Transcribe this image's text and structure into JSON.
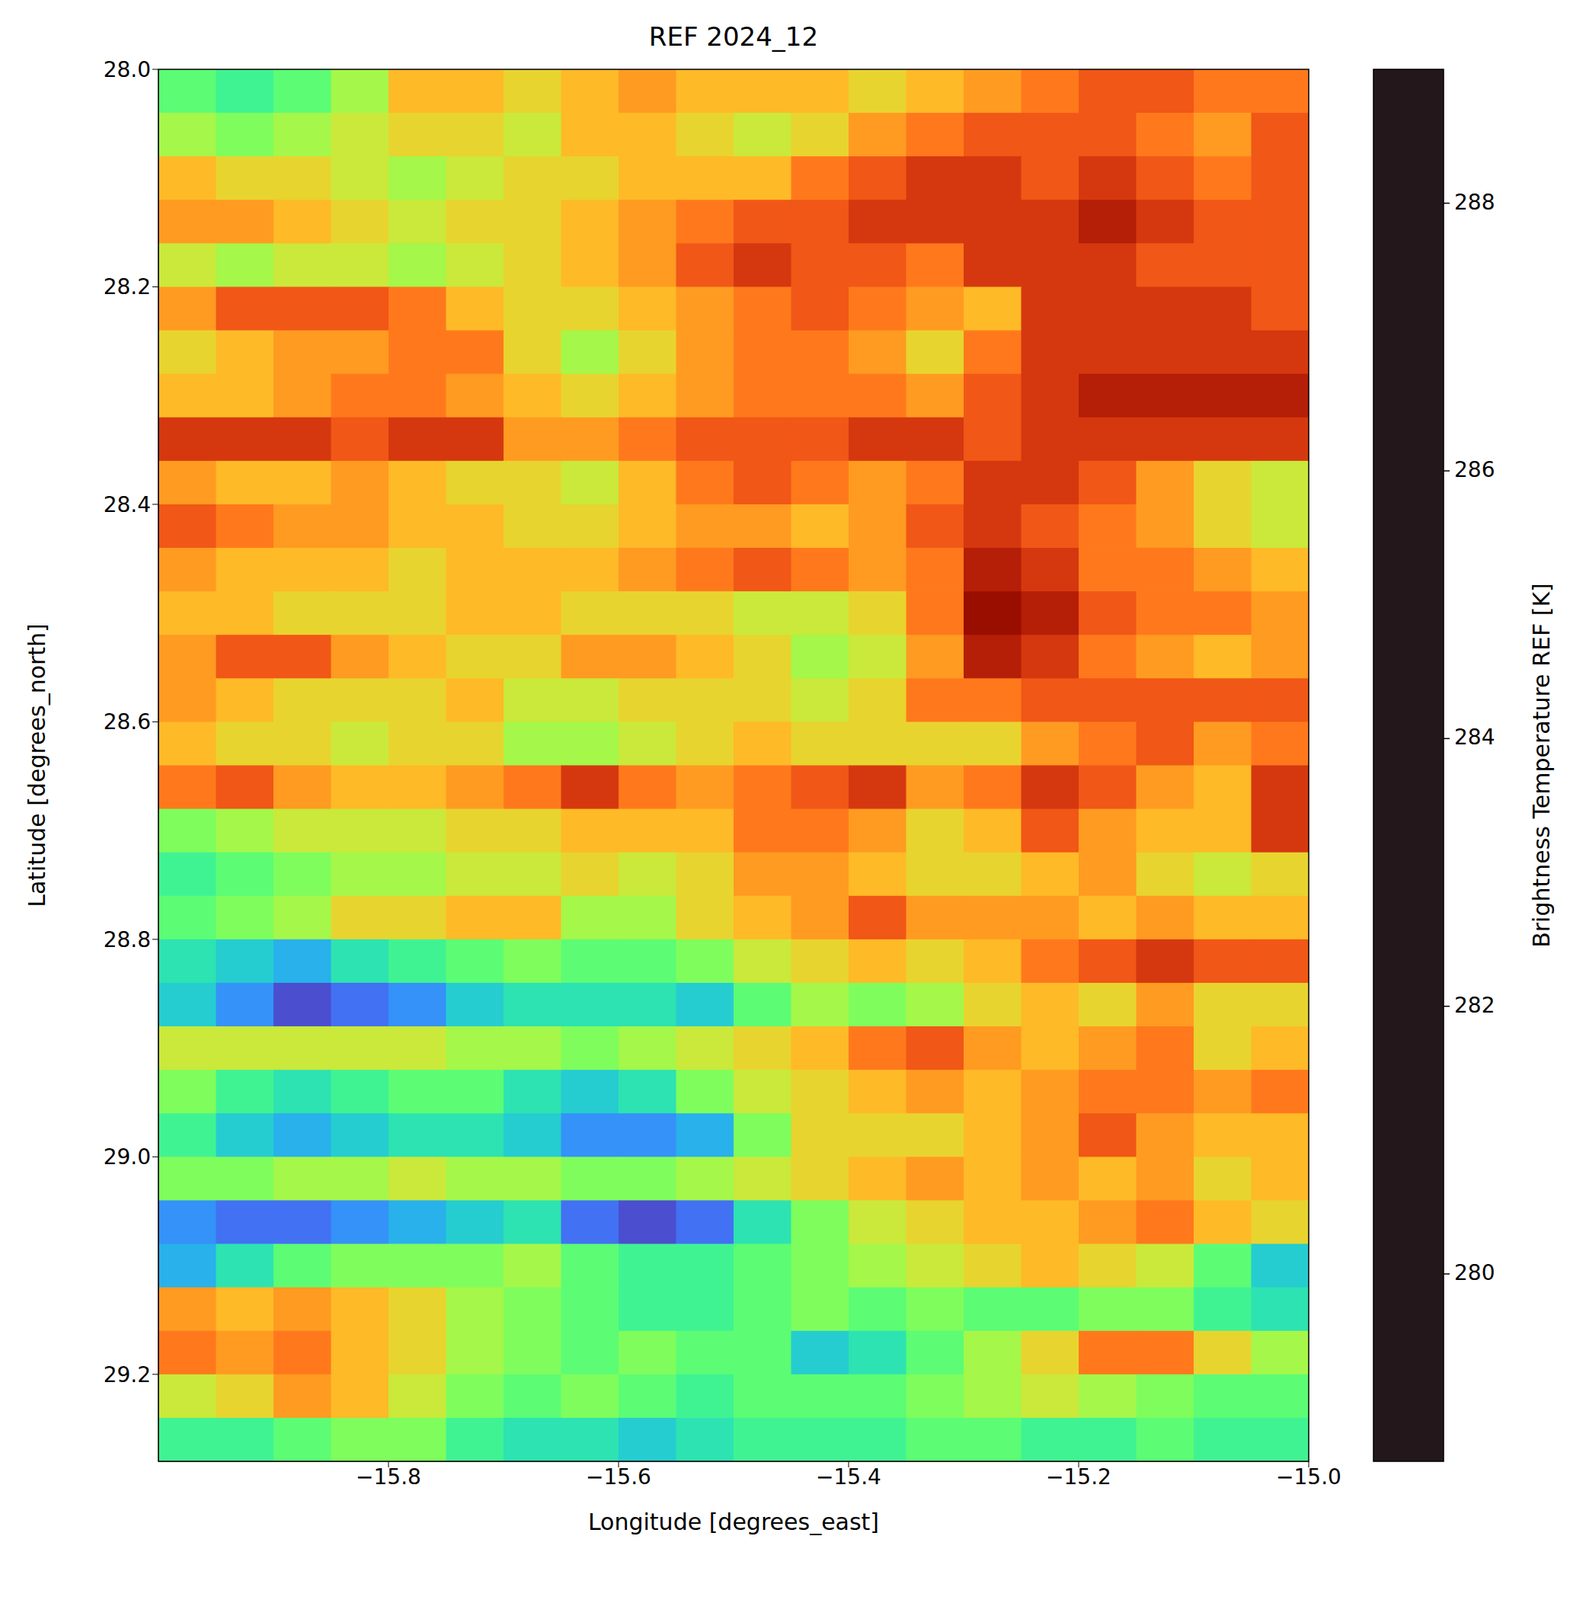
{
  "chart_data": {
    "type": "heatmap",
    "title": "REF 2024_12",
    "x_label": "Longitude [degrees_east]",
    "y_label": "Latitude [degrees_north]",
    "xlim": [
      -16.0,
      -15.0
    ],
    "xticks": [
      {
        "value": -15.8,
        "label": "−15.8"
      },
      {
        "value": -15.6,
        "label": "−15.6"
      },
      {
        "value": -15.4,
        "label": "−15.4"
      },
      {
        "value": -15.2,
        "label": "−15.2"
      },
      {
        "value": -15.0,
        "label": "−15.0"
      }
    ],
    "ylim": [
      28.0,
      29.28
    ],
    "yticks": [
      {
        "value": 28.0,
        "label": "28.0"
      },
      {
        "value": 28.2,
        "label": "28.2"
      },
      {
        "value": 28.4,
        "label": "28.4"
      },
      {
        "value": 28.6,
        "label": "28.6"
      },
      {
        "value": 28.8,
        "label": "28.8"
      },
      {
        "value": 29.0,
        "label": "29.0"
      },
      {
        "value": 29.2,
        "label": "29.2"
      }
    ],
    "x": [
      -15.975,
      -15.925,
      -15.875,
      -15.825,
      -15.775,
      -15.725,
      -15.675,
      -15.625,
      -15.575,
      -15.525,
      -15.475,
      -15.425,
      -15.375,
      -15.325,
      -15.275,
      -15.225,
      -15.175,
      -15.125,
      -15.075,
      -15.025
    ],
    "y": [
      28.02,
      28.06,
      28.1,
      28.14,
      28.18,
      28.22,
      28.26,
      28.3,
      28.34,
      28.38,
      28.42,
      28.46,
      28.5,
      28.54,
      28.58,
      28.62,
      28.66,
      28.7,
      28.74,
      28.78,
      28.82,
      28.86,
      28.9,
      28.94,
      28.98,
      29.02,
      29.06,
      29.1,
      29.14,
      29.18,
      29.22,
      29.26
    ],
    "values": [
      [
        283,
        282.5,
        283,
        284,
        285.5,
        285.5,
        285,
        285.5,
        286,
        285.5,
        285.5,
        285.5,
        285,
        285.5,
        286,
        286.5,
        287,
        287,
        286.5,
        286.5
      ],
      [
        284,
        283.5,
        284,
        284.5,
        285,
        285,
        284.5,
        285.5,
        285.5,
        285,
        284.5,
        285,
        286,
        286.5,
        287,
        287,
        287,
        286.5,
        286,
        287
      ],
      [
        285.5,
        285,
        285,
        284.5,
        284,
        284.5,
        285,
        285,
        285.5,
        285.5,
        285.5,
        286.5,
        287,
        287.5,
        287.5,
        287,
        287.5,
        287,
        286.5,
        287
      ],
      [
        286,
        286,
        285.5,
        285,
        284.5,
        285,
        285,
        285.5,
        286,
        286.5,
        287,
        287,
        287.5,
        287.5,
        287.5,
        287.5,
        288,
        287.5,
        287,
        287
      ],
      [
        284.5,
        284,
        284.5,
        284.5,
        284,
        284.5,
        285,
        285.5,
        286,
        287,
        287.5,
        287,
        287,
        286.5,
        287.5,
        287.5,
        287.5,
        287,
        287,
        287
      ],
      [
        286,
        287,
        287,
        287,
        286.5,
        285.5,
        285,
        285,
        285.5,
        286,
        286.5,
        287,
        286.5,
        286,
        285.5,
        287.5,
        287.5,
        287.5,
        287.5,
        287
      ],
      [
        285,
        285.5,
        286,
        286,
        286.5,
        286.5,
        285,
        284,
        285,
        286,
        286.5,
        286.5,
        286,
        285,
        286.5,
        287.5,
        287.5,
        287.5,
        287.5,
        287.5
      ],
      [
        285.5,
        285.5,
        286,
        286.5,
        286.5,
        286,
        285.5,
        285,
        285.5,
        286,
        286.5,
        286.5,
        286.5,
        286,
        287,
        287.5,
        288,
        288,
        288,
        288
      ],
      [
        287.5,
        287.5,
        287.5,
        287,
        287.5,
        287.5,
        286,
        286,
        286.5,
        287,
        287,
        287,
        287.5,
        287.5,
        287,
        287.5,
        287.5,
        287.5,
        287.5,
        287.5
      ],
      [
        286,
        285.5,
        285.5,
        286,
        285.5,
        285,
        285,
        284.5,
        285.5,
        286.5,
        287,
        286.5,
        286,
        286.5,
        287.5,
        287.5,
        287,
        286,
        285,
        284.5
      ],
      [
        287,
        286.5,
        286,
        286,
        285.5,
        285.5,
        285,
        285,
        285.5,
        286,
        286,
        285.5,
        286,
        287,
        287.5,
        287,
        286.5,
        286,
        285,
        284.5
      ],
      [
        286,
        285.5,
        285.5,
        285.5,
        285,
        285.5,
        285.5,
        285.5,
        286,
        286.5,
        287,
        286.5,
        286,
        286.5,
        288,
        287.5,
        286.5,
        286.5,
        286,
        285.5
      ],
      [
        285.5,
        285.5,
        285,
        285,
        285,
        285.5,
        285.5,
        285,
        285,
        285,
        284.5,
        284.5,
        285,
        286.5,
        288.5,
        288,
        287,
        286.5,
        286.5,
        286
      ],
      [
        286,
        287,
        287,
        286,
        285.5,
        285,
        285,
        286,
        286,
        285.5,
        285,
        284,
        284.5,
        286,
        288,
        287.5,
        286.5,
        286,
        285.5,
        286
      ],
      [
        286,
        285.5,
        285,
        285,
        285,
        285.5,
        284.5,
        284.5,
        285,
        285,
        285,
        284.5,
        285,
        286.5,
        286.5,
        287,
        287,
        287,
        287,
        287
      ],
      [
        285.5,
        285,
        285,
        284.5,
        285,
        285,
        284,
        284,
        284.5,
        285,
        285.5,
        285,
        285,
        285,
        285,
        286,
        286.5,
        287,
        286,
        286.5
      ],
      [
        286.5,
        287,
        286,
        285.5,
        285.5,
        286,
        286.5,
        287.5,
        286.5,
        286,
        286.5,
        287,
        287.5,
        286,
        286.5,
        287.5,
        287,
        286,
        285.5,
        287.5
      ],
      [
        283.5,
        284,
        284.5,
        284.5,
        284.5,
        285,
        285,
        285.5,
        285.5,
        285.5,
        286.5,
        286.5,
        286,
        285,
        285.5,
        287,
        286,
        285.5,
        285.5,
        287.5
      ],
      [
        282.5,
        283,
        283.5,
        284,
        284,
        284.5,
        284.5,
        285,
        284.5,
        285,
        286,
        286,
        285.5,
        285,
        285,
        285.5,
        286,
        285,
        284.5,
        285
      ],
      [
        283,
        283.5,
        284,
        285,
        285,
        285.5,
        285.5,
        284,
        284,
        285,
        285.5,
        286,
        287,
        286,
        286,
        286,
        285.5,
        286,
        285.5,
        285.5
      ],
      [
        282,
        281.5,
        281,
        282,
        282.5,
        283,
        283.5,
        283,
        283,
        283.5,
        284.5,
        285,
        285.5,
        285,
        285.5,
        286.5,
        287,
        287.5,
        287,
        287
      ],
      [
        281.5,
        280.5,
        279.5,
        280,
        280.5,
        281.5,
        282,
        282,
        282,
        281.5,
        283,
        284,
        283.5,
        284,
        285,
        285.5,
        285,
        286,
        285,
        285
      ],
      [
        284.5,
        284.5,
        284.5,
        284.5,
        284.5,
        284,
        284,
        283.5,
        284,
        284.5,
        285,
        285.5,
        286.5,
        287,
        286,
        285.5,
        286,
        286.5,
        285,
        285.5
      ],
      [
        283.5,
        282.5,
        282,
        282.5,
        283,
        283,
        282,
        281.5,
        282,
        283.5,
        284.5,
        285,
        285.5,
        286,
        285.5,
        286,
        286.5,
        286.5,
        286,
        286.5
      ],
      [
        282.5,
        281.5,
        281,
        281.5,
        282,
        282,
        281.5,
        280.5,
        280.5,
        281,
        283.5,
        285,
        285,
        285,
        285.5,
        286,
        287,
        286,
        285.5,
        285.5
      ],
      [
        283.5,
        283.5,
        284,
        284,
        284.5,
        284,
        284,
        283.5,
        283.5,
        284,
        284.5,
        285,
        285.5,
        286,
        285.5,
        286,
        285.5,
        286,
        285,
        285.5
      ],
      [
        280.5,
        280,
        280,
        280.5,
        281,
        281.5,
        282,
        280,
        279.5,
        280,
        282,
        283.5,
        284.5,
        285,
        285.5,
        285.5,
        286,
        286.5,
        285.5,
        285
      ],
      [
        281,
        282,
        283,
        283.5,
        283.5,
        283.5,
        284,
        283,
        282.5,
        282.5,
        283,
        283.5,
        284,
        284.5,
        285,
        285.5,
        285,
        284.5,
        283,
        281.5
      ],
      [
        286,
        285.5,
        286,
        285.5,
        285,
        284,
        283.5,
        283,
        282.5,
        282.5,
        283,
        283.5,
        283,
        283.5,
        283,
        283,
        283.5,
        283.5,
        282.5,
        282
      ],
      [
        286.5,
        286,
        286.5,
        285.5,
        285,
        284,
        283.5,
        283,
        283.5,
        283,
        283,
        281.5,
        282,
        283,
        284,
        285,
        286.5,
        286.5,
        285,
        284
      ],
      [
        284.5,
        285,
        286,
        285.5,
        284.5,
        283.5,
        283,
        283.5,
        283,
        282.5,
        283,
        283,
        283,
        283.5,
        284,
        284.5,
        284,
        283.5,
        283,
        283
      ],
      [
        282.5,
        282.5,
        283,
        283.5,
        283.5,
        282.5,
        282,
        282,
        281.5,
        282,
        282.5,
        282.5,
        282.5,
        283,
        283,
        282.5,
        282.5,
        283,
        282.5,
        282.5
      ]
    ],
    "colorbar": {
      "label": "Brightness Temperature REF [K]",
      "range": [
        278.6,
        289.0
      ],
      "ticks": [
        280,
        282,
        284,
        286,
        288
      ]
    }
  }
}
